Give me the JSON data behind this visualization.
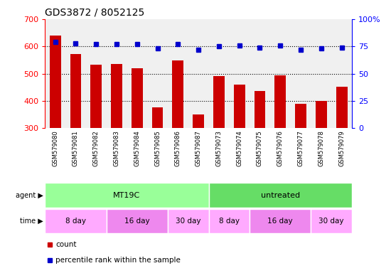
{
  "title": "GDS3872 / 8052125",
  "samples": [
    "GSM579080",
    "GSM579081",
    "GSM579082",
    "GSM579083",
    "GSM579084",
    "GSM579085",
    "GSM579086",
    "GSM579087",
    "GSM579073",
    "GSM579074",
    "GSM579075",
    "GSM579076",
    "GSM579077",
    "GSM579078",
    "GSM579079"
  ],
  "counts": [
    640,
    572,
    533,
    535,
    520,
    378,
    548,
    352,
    492,
    460,
    437,
    495,
    390,
    400,
    452
  ],
  "percentiles": [
    79,
    78,
    77,
    77,
    77,
    73,
    77,
    72,
    75,
    76,
    74,
    76,
    72,
    73,
    74
  ],
  "ylim_left": [
    300,
    700
  ],
  "ylim_right": [
    0,
    100
  ],
  "yticks_left": [
    300,
    400,
    500,
    600,
    700
  ],
  "yticks_right": [
    0,
    25,
    50,
    75,
    100
  ],
  "bar_color": "#CC0000",
  "dot_color": "#0000CC",
  "agent_groups": [
    {
      "text": "MT19C",
      "start": 0,
      "end": 8,
      "color": "#99FF99"
    },
    {
      "text": "untreated",
      "start": 8,
      "end": 15,
      "color": "#66DD66"
    }
  ],
  "time_groups": [
    {
      "text": "8 day",
      "start": 0,
      "end": 3,
      "color": "#FFAAFF"
    },
    {
      "text": "16 day",
      "start": 3,
      "end": 6,
      "color": "#EE88EE"
    },
    {
      "text": "30 day",
      "start": 6,
      "end": 8,
      "color": "#FFAAFF"
    },
    {
      "text": "8 day",
      "start": 8,
      "end": 10,
      "color": "#FFAAFF"
    },
    {
      "text": "16 day",
      "start": 10,
      "end": 13,
      "color": "#EE88EE"
    },
    {
      "text": "30 day",
      "start": 13,
      "end": 15,
      "color": "#FFAAFF"
    }
  ],
  "legend_items": [
    {
      "label": "count",
      "color": "#CC0000"
    },
    {
      "label": "percentile rank within the sample",
      "color": "#0000CC"
    }
  ]
}
